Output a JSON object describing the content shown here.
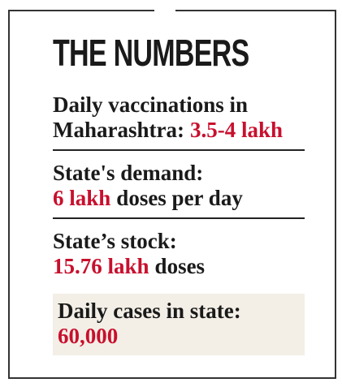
{
  "title": "THE NUMBERS",
  "items": [
    {
      "lines": [
        [
          {
            "text": "Daily vaccinations in"
          }
        ],
        [
          {
            "text": "Maharashtra:"
          },
          {
            "text": "3.5-4 lakh",
            "highlight": true
          }
        ]
      ],
      "rule": true,
      "shaded": false
    },
    {
      "lines": [
        [
          {
            "text": "State's demand:"
          }
        ],
        [
          {
            "text": "6 lakh",
            "highlight": true
          },
          {
            "text": "doses per day"
          }
        ]
      ],
      "rule": true,
      "shaded": false
    },
    {
      "lines": [
        [
          {
            "text": "State’s stock:"
          }
        ],
        [
          {
            "text": "15.76 lakh",
            "highlight": true
          },
          {
            "text": "doses"
          }
        ]
      ],
      "rule": false,
      "shaded": false
    },
    {
      "lines": [
        [
          {
            "text": "Daily cases in state:"
          }
        ],
        [
          {
            "text": "60,000",
            "highlight": true
          }
        ]
      ],
      "rule": false,
      "shaded": true
    }
  ],
  "highlight_color": "#c8102e",
  "text_color": "#1a1a1a",
  "shade_color": "#f3efe6"
}
